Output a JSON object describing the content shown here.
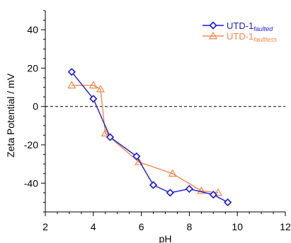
{
  "chart_data": {
    "type": "line",
    "title": "",
    "xlabel": "pH",
    "ylabel": "Zeta Potential / mV",
    "xlim": [
      2,
      12
    ],
    "ylim": [
      -55,
      50
    ],
    "x_ticks": [
      2,
      4,
      6,
      8,
      10,
      12
    ],
    "y_ticks": [
      40,
      20,
      0,
      -20,
      -40
    ],
    "zero_line": {
      "y": 0,
      "style": "dashed"
    },
    "grid": false,
    "legend": {
      "placement": "top-right"
    },
    "series": [
      {
        "name": "UTD-1",
        "name_subscript": "faulted",
        "color": "#1a1adc",
        "marker": "diamond",
        "x": [
          3.1,
          4.0,
          4.7,
          5.8,
          6.5,
          7.2,
          8.0,
          9.0,
          9.6
        ],
        "y": [
          18,
          4,
          -16,
          -26,
          -41,
          -45,
          -43,
          -46,
          -50
        ]
      },
      {
        "name": "UTD-1",
        "name_subscript": "faultless",
        "color": "#f2874a",
        "marker": "triangle",
        "x": [
          3.1,
          4.0,
          4.3,
          4.5,
          5.9,
          7.3,
          8.5,
          9.2
        ],
        "y": [
          11,
          11,
          9,
          -14,
          -29,
          -35,
          -44,
          -45
        ]
      }
    ]
  }
}
